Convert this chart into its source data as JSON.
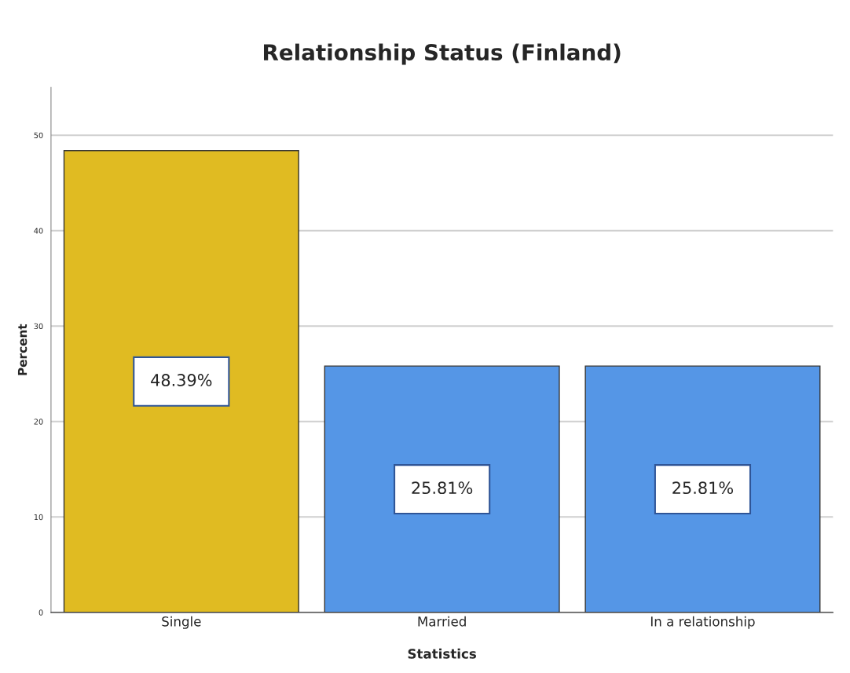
{
  "chart_data": {
    "type": "bar",
    "title": "Relationship Status (Finland)",
    "xlabel": "Statistics",
    "ylabel": "Percent",
    "categories": [
      "Single",
      "Married",
      "In a relationship"
    ],
    "values": [
      48.39,
      25.81,
      25.81
    ],
    "colors": [
      "#e0bb22",
      "#5596e6",
      "#5596e6"
    ],
    "value_labels": [
      "48.39%",
      "25.81%",
      "25.81%"
    ],
    "ylim": [
      0,
      55
    ],
    "yticks": [
      0,
      10,
      20,
      30,
      40,
      50
    ],
    "grid": "y",
    "legend": false
  }
}
